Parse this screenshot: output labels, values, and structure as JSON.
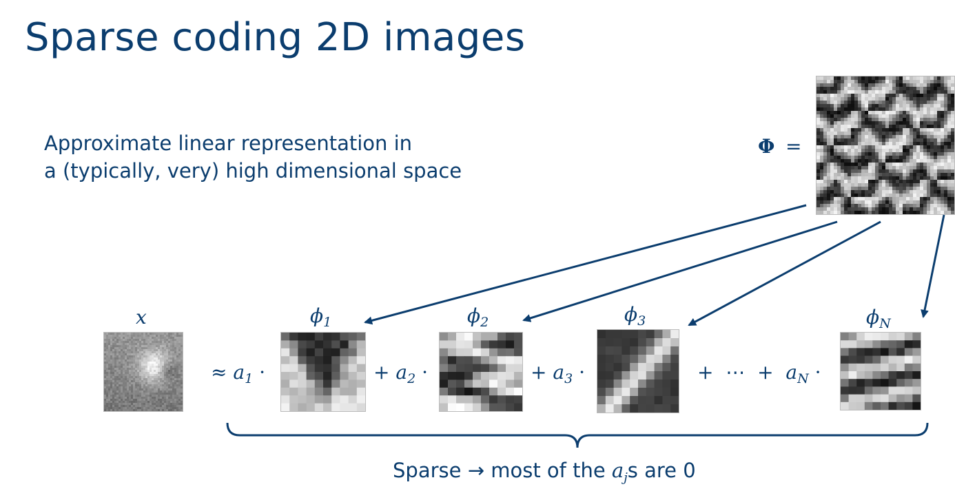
{
  "slide": {
    "title": "Sparse coding 2D images",
    "subtitle_line1": "Approximate linear representation in",
    "subtitle_line2": "a (typically, very) high dimensional space"
  },
  "dictionary": {
    "symbol": "Φ",
    "equals": "="
  },
  "images": {
    "x_label": "x",
    "phi_base": "ϕ",
    "phi1_sub": "1",
    "phi2_sub": "2",
    "phi3_sub": "3",
    "phiN_sub": "N"
  },
  "equation": {
    "approx": "≈",
    "a": "a",
    "dot": "·",
    "plus": "+",
    "ellipsis": "⋯",
    "sub1": "1",
    "sub2": "2",
    "sub3": "3",
    "subN": "N"
  },
  "footer": {
    "prefix": "Sparse ",
    "arrow": "→",
    "middle": " most of the ",
    "var": "a",
    "var_sub": "j",
    "suffix": "s are 0"
  },
  "colors": {
    "accent": "#0b3d6e"
  }
}
